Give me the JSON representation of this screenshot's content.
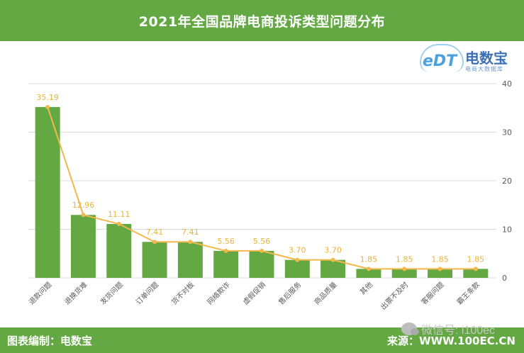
{
  "title": "2021年全国品牌电商投诉类型问题分布",
  "footer": {
    "left": "图表编制：电数宝",
    "right": "来源：WWW.100EC.CN",
    "watermark": "微信号: i100ec"
  },
  "logo": {
    "mark": "eDT",
    "name": "电数宝",
    "tagline": "电商大数据库"
  },
  "colors": {
    "brand_green": "#64a844",
    "bar": "#64a844",
    "line": "#f2b84b",
    "label": "#e8b43a"
  },
  "chart_data": {
    "type": "bar",
    "categories": [
      "退款问题",
      "退换货难",
      "发货问题",
      "订单问题",
      "货不对板",
      "网络欺诈",
      "虚假促销",
      "售后服务",
      "商品质量",
      "其他",
      "出票不及时",
      "客服问题",
      "霸王条款"
    ],
    "values": [
      35.19,
      12.96,
      11.11,
      7.41,
      7.41,
      5.56,
      5.56,
      3.7,
      3.7,
      1.85,
      1.85,
      1.85,
      1.85
    ],
    "labels": [
      "35.19",
      "12.96",
      "11.11",
      "7.41",
      "7.41",
      "5.56",
      "5.56",
      "3.70",
      "3.70",
      "1.85",
      "1.85",
      "1.85",
      "1.85"
    ],
    "overlay_line": true,
    "ylim": [
      0,
      40
    ],
    "yticks": [
      "0",
      "10",
      "20",
      "30",
      "40"
    ],
    "y_axis_side": "right",
    "grid": true
  }
}
